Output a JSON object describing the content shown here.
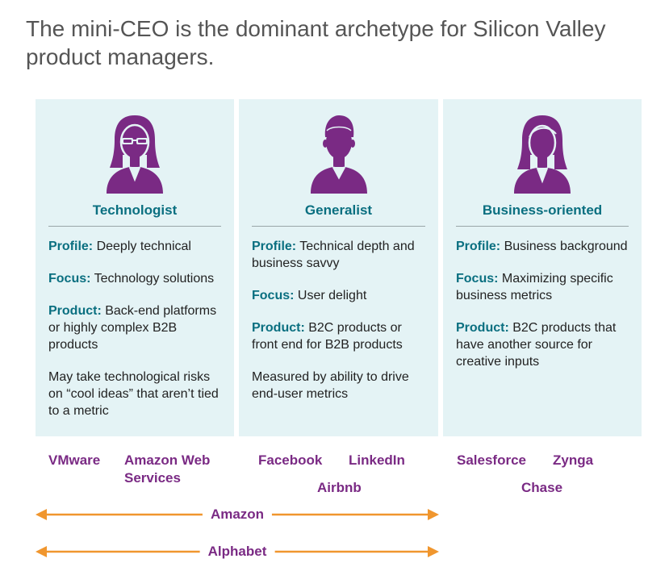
{
  "title": "The mini-CEO is the dominant archetype for Silicon Valley product managers.",
  "colors": {
    "panel_bg": "#e4f3f5",
    "heading_teal": "#0a6f80",
    "company_purple": "#7a2a84",
    "arrow_orange": "#f0962e",
    "icon_purple": "#7a2a84"
  },
  "archetypes": [
    {
      "icon": "woman-with-glasses-icon",
      "name": "Technologist",
      "profile_label": "Profile:",
      "profile": "Deeply technical",
      "focus_label": "Focus:",
      "focus": "Technology solutions",
      "product_label": "Product:",
      "product": "Back-end platforms or highly complex B2B products",
      "note": "May take technological risks on “cool ideas” that aren’t tied to a metric"
    },
    {
      "icon": "man-icon",
      "name": "Generalist",
      "profile_label": "Profile:",
      "profile": "Technical depth and business savvy",
      "focus_label": "Focus:",
      "focus": "User delight",
      "product_label": "Product:",
      "product": "B2C products or front end for B2B products",
      "note": "Measured by ability to drive end-user metrics"
    },
    {
      "icon": "woman-icon",
      "name": "Business-oriented",
      "profile_label": "Profile:",
      "profile": "Business background",
      "focus_label": "Focus:",
      "focus": "Maximizing specific business metrics",
      "product_label": "Product:",
      "product": "B2C products that have another source for creative inputs"
    }
  ],
  "companies": {
    "technologist": [
      "VMware",
      "Amazon Web Services"
    ],
    "generalist": [
      "Facebook",
      "LinkedIn",
      "Airbnb"
    ],
    "business": [
      "Salesforce",
      "Zynga",
      "Chase"
    ]
  },
  "spans": [
    {
      "label": "Amazon"
    },
    {
      "label": "Alphabet"
    }
  ]
}
